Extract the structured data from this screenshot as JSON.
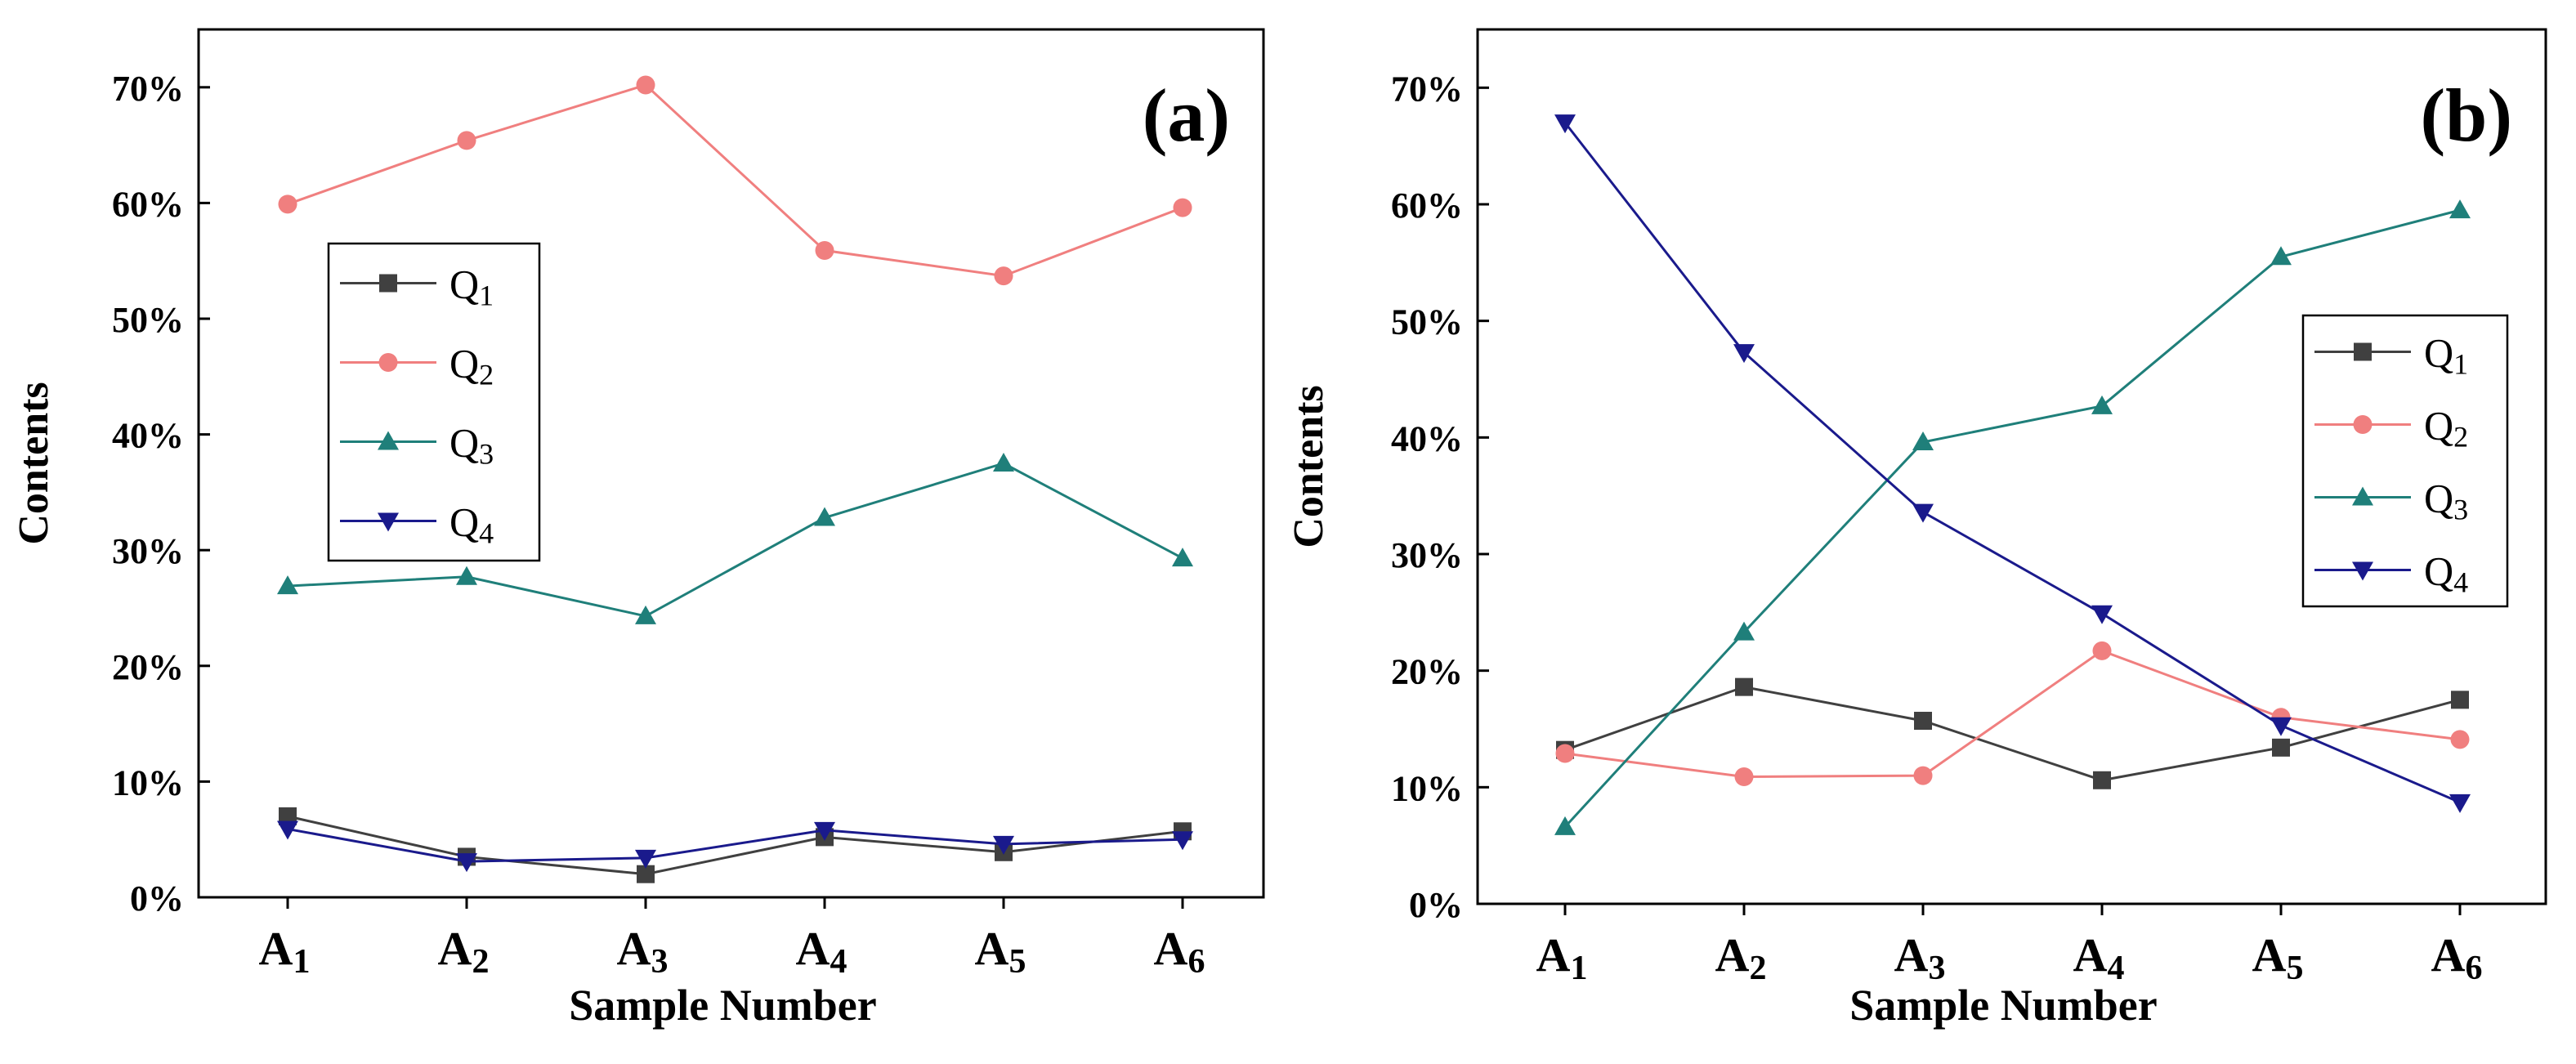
{
  "chart_data": [
    {
      "type": "line",
      "panel_label": "(a)",
      "xlabel": "Sample Number",
      "ylabel": "Contents",
      "categories": [
        {
          "base": "A",
          "sub": "1"
        },
        {
          "base": "A",
          "sub": "2"
        },
        {
          "base": "A",
          "sub": "3"
        },
        {
          "base": "A",
          "sub": "4"
        },
        {
          "base": "A",
          "sub": "5"
        },
        {
          "base": "A",
          "sub": "6"
        }
      ],
      "ylim": [
        0,
        75
      ],
      "yticks": [
        0,
        10,
        20,
        30,
        40,
        50,
        60,
        70
      ],
      "ytick_labels": [
        "0%",
        "10%",
        "20%",
        "30%",
        "40%",
        "50%",
        "60%",
        "70%"
      ],
      "legend_position": "middle-left",
      "series": [
        {
          "base": "Q",
          "sub": "1",
          "marker": "square",
          "color": "#404040",
          "values": [
            7.0,
            3.5,
            2.0,
            5.2,
            3.9,
            5.7
          ]
        },
        {
          "base": "Q",
          "sub": "2",
          "marker": "circle",
          "color": "#f07f7f",
          "values": [
            59.9,
            65.4,
            70.2,
            55.9,
            53.7,
            59.6
          ]
        },
        {
          "base": "Q",
          "sub": "3",
          "marker": "triangle-up",
          "color": "#1f7f7a",
          "values": [
            26.9,
            27.7,
            24.3,
            32.8,
            37.5,
            29.3
          ]
        },
        {
          "base": "Q",
          "sub": "4",
          "marker": "triangle-down",
          "color": "#1a1a8c",
          "values": [
            5.9,
            3.1,
            3.4,
            5.8,
            4.6,
            5.0
          ]
        }
      ]
    },
    {
      "type": "line",
      "panel_label": "(b)",
      "xlabel": "Sample Number",
      "ylabel": "Contents",
      "categories": [
        {
          "base": "A",
          "sub": "1"
        },
        {
          "base": "A",
          "sub": "2"
        },
        {
          "base": "A",
          "sub": "3"
        },
        {
          "base": "A",
          "sub": "4"
        },
        {
          "base": "A",
          "sub": "5"
        },
        {
          "base": "A",
          "sub": "6"
        }
      ],
      "ylim": [
        0,
        75
      ],
      "yticks": [
        0,
        10,
        20,
        30,
        40,
        50,
        60,
        70
      ],
      "ytick_labels": [
        "0%",
        "10%",
        "20%",
        "30%",
        "40%",
        "50%",
        "60%",
        "70%"
      ],
      "legend_position": "middle-right",
      "series": [
        {
          "base": "Q",
          "sub": "1",
          "marker": "square",
          "color": "#404040",
          "values": [
            13.2,
            18.6,
            15.7,
            10.6,
            13.4,
            17.5
          ]
        },
        {
          "base": "Q",
          "sub": "2",
          "marker": "circle",
          "color": "#f07f7f",
          "values": [
            12.9,
            10.9,
            11.0,
            21.7,
            16.0,
            14.1
          ]
        },
        {
          "base": "Q",
          "sub": "3",
          "marker": "triangle-up",
          "color": "#1f7f7a",
          "values": [
            6.6,
            23.3,
            39.6,
            42.7,
            55.5,
            59.5
          ]
        },
        {
          "base": "Q",
          "sub": "4",
          "marker": "triangle-down",
          "color": "#1a1a8c",
          "values": [
            67.0,
            47.3,
            33.6,
            24.9,
            15.3,
            8.7
          ]
        }
      ]
    }
  ]
}
